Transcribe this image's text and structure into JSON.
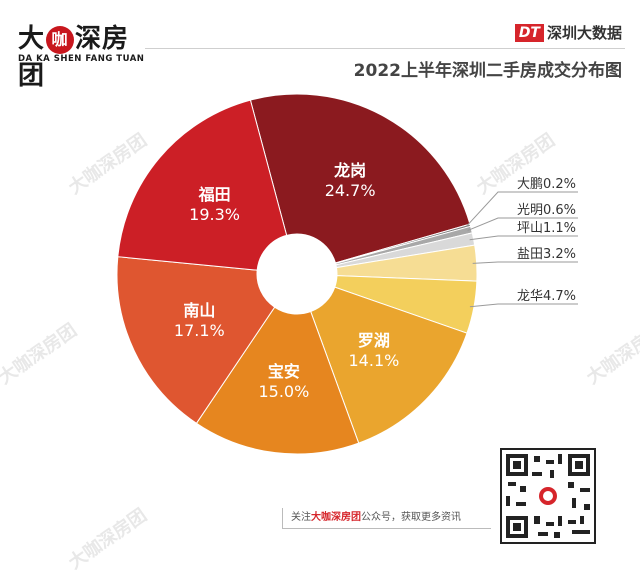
{
  "header": {
    "logo_main_1": "大",
    "logo_main_ka": "咖",
    "logo_main_2": "深房团",
    "logo_sub": "DA KA SHEN FANG TUAN",
    "dt_mark": "DT",
    "dt_text": "深圳大数据",
    "title": "2022上半年深圳二手房成交分布图"
  },
  "footer": {
    "note_prefix": "关注",
    "note_brand": "大咖深房团",
    "note_suffix": "公众号，获取更多资讯"
  },
  "watermark_text": "大咖深房团",
  "chart_data": {
    "type": "pie",
    "donut": true,
    "slices": [
      {
        "label": "龙岗",
        "value": 24.7,
        "pct_label": "24.7%",
        "color": "#8b1a1f",
        "label_mode": "inside"
      },
      {
        "label": "大鹏",
        "value": 0.2,
        "pct_label": "0.2%",
        "color": "#7a7a7a",
        "label_mode": "outside"
      },
      {
        "label": "光明",
        "value": 0.6,
        "pct_label": "0.6%",
        "color": "#a8a8a8",
        "label_mode": "outside"
      },
      {
        "label": "坪山",
        "value": 1.1,
        "pct_label": "1.1%",
        "color": "#d9d9d9",
        "label_mode": "outside"
      },
      {
        "label": "盐田",
        "value": 3.2,
        "pct_label": "3.2%",
        "color": "#f6dd94",
        "label_mode": "outside"
      },
      {
        "label": "龙华",
        "value": 4.7,
        "pct_label": "4.7%",
        "color": "#f3cf5c",
        "label_mode": "outside"
      },
      {
        "label": "罗湖",
        "value": 14.1,
        "pct_label": "14.1%",
        "color": "#eaa52e",
        "label_mode": "inside"
      },
      {
        "label": "宝安",
        "value": 15.0,
        "pct_label": "15.0%",
        "color": "#e6861f",
        "label_mode": "inside"
      },
      {
        "label": "南山",
        "value": 17.1,
        "pct_label": "17.1%",
        "color": "#df5630",
        "label_mode": "inside"
      },
      {
        "label": "福田",
        "value": 19.3,
        "pct_label": "19.3%",
        "color": "#cc1f26",
        "label_mode": "inside"
      }
    ]
  }
}
